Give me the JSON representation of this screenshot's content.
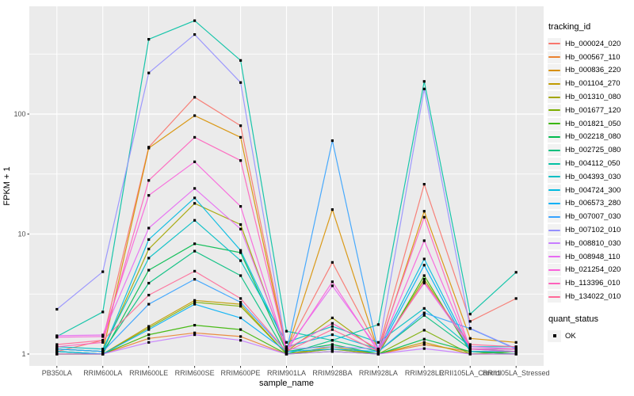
{
  "figure": {
    "panel_bg": "#EBEBEB",
    "grid_color": "#FFFFFF",
    "axis_text_color": "#4D4D4D",
    "tick_color": "#333333",
    "legend": {
      "tracking_title": "tracking_id",
      "quant_title": "quant_status",
      "quant_ok_label": "OK",
      "key_bg": "#F2F2F2"
    }
  },
  "chart_data": {
    "type": "line",
    "title": "",
    "xlabel": "sample_name",
    "ylabel": "FPKM + 1",
    "yscale": "log10",
    "ylim": [
      0.95,
      650
    ],
    "yticks": [
      1,
      10,
      100
    ],
    "ytick_labels": [
      "1",
      "10",
      "100"
    ],
    "grid": true,
    "legend_position": "right",
    "point_marker": "black-square (quant_status = OK)",
    "categories": [
      "PB350LA",
      "RRIM600LA",
      "RRIM600LE",
      "RRIM600SE",
      "RRIM600PE",
      "RRIM901LA",
      "RRIM928BA",
      "RRIM928LA",
      "RRIM928LE",
      "RRII105LA_Control",
      "RRII105LA_Stressed"
    ],
    "series": [
      {
        "name": "Hb_000024_020",
        "color": "#F8766D",
        "values": [
          1.05,
          1.3,
          53,
          138,
          80,
          1.1,
          5.8,
          1.1,
          26,
          1.87,
          2.9
        ]
      },
      {
        "name": "Hb_000567_110",
        "color": "#EA8331",
        "values": [
          1.0,
          1.0,
          1.35,
          1.5,
          1.4,
          1.0,
          1.1,
          1.0,
          1.2,
          1.05,
          1.05
        ]
      },
      {
        "name": "Hb_000836_220",
        "color": "#D89000",
        "values": [
          1.1,
          1.05,
          52,
          97,
          64,
          1.05,
          16,
          1.05,
          15.5,
          1.35,
          1.25
        ]
      },
      {
        "name": "Hb_001104_270",
        "color": "#C09B00",
        "values": [
          1.0,
          1.0,
          1.7,
          2.8,
          2.6,
          1.0,
          1.15,
          1.0,
          1.25,
          1.0,
          1.0
        ]
      },
      {
        "name": "Hb_001310_080",
        "color": "#A3A500",
        "values": [
          1.1,
          1.05,
          7.5,
          18,
          12,
          1.05,
          2.0,
          1.05,
          4.2,
          1.1,
          1.1
        ]
      },
      {
        "name": "Hb_001677_120",
        "color": "#7CAE00",
        "values": [
          1.0,
          1.0,
          1.65,
          2.7,
          2.5,
          1.0,
          1.1,
          1.0,
          1.58,
          1.0,
          1.05
        ]
      },
      {
        "name": "Hb_001821_050",
        "color": "#39B600",
        "values": [
          1.05,
          1.0,
          1.45,
          1.74,
          1.6,
          1.0,
          1.05,
          1.0,
          4.5,
          1.05,
          1.0
        ]
      },
      {
        "name": "Hb_002218_080",
        "color": "#00BB4E",
        "values": [
          1.05,
          1.0,
          5.0,
          8.3,
          7.0,
          1.05,
          1.2,
          1.0,
          1.33,
          1.05,
          1.0
        ]
      },
      {
        "name": "Hb_002725_080",
        "color": "#00BF7D",
        "values": [
          1.1,
          1.05,
          3.9,
          7.2,
          4.5,
          1.0,
          1.3,
          1.05,
          2.1,
          1.1,
          1.05
        ]
      },
      {
        "name": "Hb_004112_050",
        "color": "#00C1A3",
        "values": [
          1.4,
          2.24,
          420,
          600,
          280,
          1.55,
          1.3,
          1.76,
          187,
          2.15,
          4.8
        ]
      },
      {
        "name": "Hb_004393_030",
        "color": "#00BFC4",
        "values": [
          1.15,
          1.1,
          6.3,
          13,
          6.0,
          1.25,
          1.7,
          1.25,
          2.4,
          1.15,
          1.15
        ]
      },
      {
        "name": "Hb_004724_300",
        "color": "#00BAE0",
        "values": [
          1.1,
          1.05,
          9.0,
          20,
          7.3,
          1.15,
          1.45,
          1.1,
          6.2,
          1.1,
          1.1
        ]
      },
      {
        "name": "Hb_006573_280",
        "color": "#00B0F6",
        "values": [
          1.05,
          1.0,
          1.6,
          2.6,
          2.0,
          1.05,
          1.1,
          1.05,
          5.5,
          1.05,
          1.05
        ]
      },
      {
        "name": "Hb_007007_030",
        "color": "#35A2FF",
        "values": [
          1.1,
          1.05,
          2.6,
          4.2,
          2.7,
          1.05,
          60,
          1.05,
          2.2,
          1.63,
          1.1
        ]
      },
      {
        "name": "Hb_007102_010",
        "color": "#9590FF",
        "values": [
          2.36,
          4.85,
          220,
          460,
          183,
          1.1,
          1.15,
          1.1,
          162,
          1.64,
          1.11
        ]
      },
      {
        "name": "Hb_008810_030",
        "color": "#C77CFF",
        "values": [
          1.0,
          1.0,
          1.25,
          1.45,
          1.3,
          1.0,
          1.05,
          1.0,
          1.11,
          1.0,
          1.0
        ]
      },
      {
        "name": "Hb_008948_110",
        "color": "#E76BF3",
        "values": [
          1.42,
          1.44,
          11.2,
          24,
          11,
          1.1,
          3.7,
          1.1,
          3.9,
          1.15,
          1.1
        ]
      },
      {
        "name": "Hb_021254_020",
        "color": "#FA62DB",
        "values": [
          1.38,
          1.4,
          21,
          40,
          17,
          1.05,
          4.0,
          1.05,
          8.8,
          1.1,
          1.05
        ]
      },
      {
        "name": "Hb_113396_010",
        "color": "#FF62BC",
        "values": [
          1.15,
          1.25,
          28,
          64,
          41,
          1.1,
          1.8,
          1.1,
          13.8,
          1.1,
          1.1
        ]
      },
      {
        "name": "Hb_134022_010",
        "color": "#FF6A98",
        "values": [
          1.2,
          1.3,
          3.1,
          4.9,
          2.9,
          1.05,
          1.6,
          1.05,
          4.0,
          1.2,
          1.15
        ]
      }
    ]
  }
}
